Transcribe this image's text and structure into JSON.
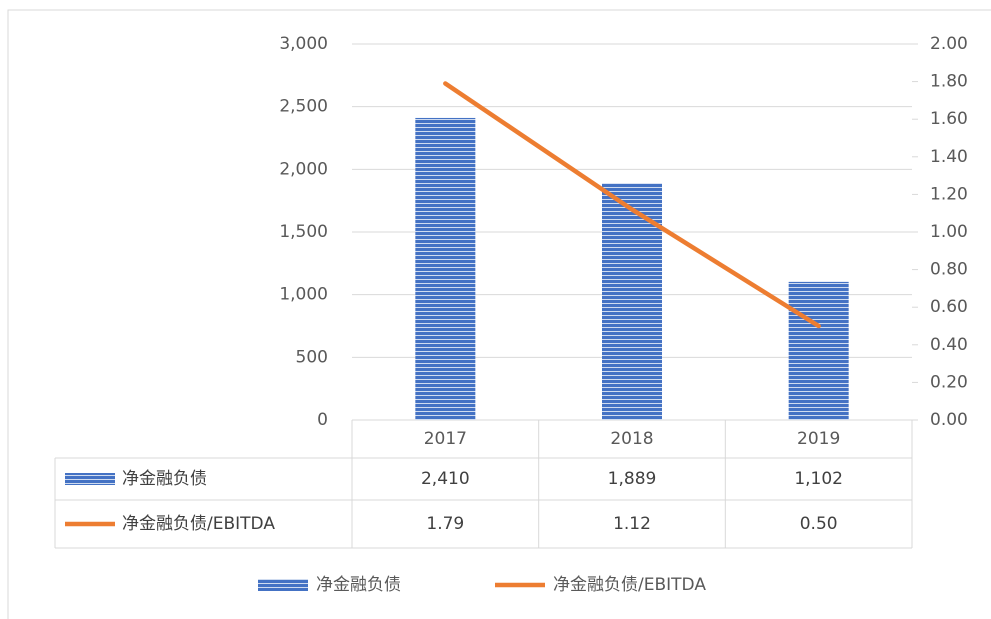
{
  "chart_data": {
    "type": "bar",
    "categories": [
      "2017",
      "2018",
      "2019"
    ],
    "series": [
      {
        "name": "净金融负债",
        "color": "#4472c4",
        "type": "bar",
        "values": [
          2410,
          1889,
          1102
        ],
        "value_labels": [
          "2,410",
          "1,889",
          "1,102"
        ]
      },
      {
        "name": "净金融负债/EBITDA",
        "color": "#ed7d31",
        "type": "line",
        "axis": "y2",
        "values": [
          1.79,
          1.12,
          0.5
        ],
        "value_labels": [
          "1.79",
          "1.12",
          "0.50"
        ]
      }
    ],
    "ylim": [
      0,
      3000
    ],
    "yticks": [
      0,
      500,
      {
        "value": 1000,
        "label": "1,000"
      },
      {
        "value": 1500,
        "label": "1,500"
      },
      {
        "value": 2000,
        "label": "2,000"
      },
      {
        "value": 2500,
        "label": "2,500"
      },
      {
        "value": 3000,
        "label": "3,000"
      }
    ],
    "y2lim": [
      0,
      2
    ],
    "y2ticks": [
      {
        "value": 0,
        "label": "0.00"
      },
      {
        "value": 0.2,
        "label": "0.20"
      },
      {
        "value": 0.4,
        "label": "0.40"
      },
      {
        "value": 0.6,
        "label": "0.60"
      },
      {
        "value": 0.8,
        "label": "0.80"
      },
      {
        "value": 1,
        "label": "1.00"
      },
      {
        "value": 1.2,
        "label": "1.20"
      },
      {
        "value": 1.4,
        "label": "1.40"
      },
      {
        "value": 1.6,
        "label": "1.60"
      },
      {
        "value": 1.8,
        "label": "1.80"
      },
      {
        "value": 2,
        "label": "2.00"
      }
    ],
    "grid": true,
    "legend": "bottom",
    "data_table": true
  }
}
